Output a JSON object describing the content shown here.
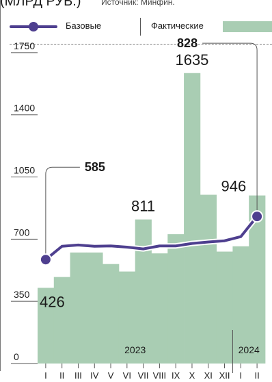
{
  "header": {
    "title": "(МЛРД РУБ.)",
    "source": "Источник: Минфин."
  },
  "colors": {
    "line": "#4e3f8f",
    "bars": "#a9cdb3",
    "text": "#1a1a1a",
    "axis": "#555555"
  },
  "chart_data": {
    "type": "bar",
    "categories": [
      "I",
      "II",
      "III",
      "IV",
      "V",
      "VI",
      "VII",
      "VIII",
      "IX",
      "X",
      "XI",
      "XII",
      "I",
      "II"
    ],
    "ylim": [
      0,
      1900
    ],
    "yticks": [
      0,
      350,
      700,
      1050,
      1400,
      1750
    ],
    "year_labels": [
      {
        "text": "2023",
        "from": 0,
        "to": 11
      },
      {
        "text": "2024",
        "from": 12,
        "to": 13
      }
    ],
    "series": [
      {
        "name": "Фактические",
        "type": "bar",
        "values": [
          426,
          487,
          625,
          625,
          560,
          518,
          811,
          620,
          728,
          1635,
          950,
          630,
          660,
          946
        ]
      },
      {
        "name": "Базовые",
        "type": "line",
        "values": [
          585,
          660,
          667,
          660,
          662,
          655,
          645,
          662,
          662,
          676,
          684,
          691,
          714,
          828
        ]
      }
    ],
    "bar_labels": [
      {
        "index": 0,
        "text": "426"
      },
      {
        "index": 6,
        "text": "811"
      },
      {
        "index": 9,
        "text": "1635"
      },
      {
        "index": 13,
        "text": "946"
      }
    ],
    "callouts": [
      {
        "index": 0,
        "text": "585",
        "side": "right"
      },
      {
        "index": 13,
        "text": "828",
        "side": "left"
      }
    ]
  }
}
